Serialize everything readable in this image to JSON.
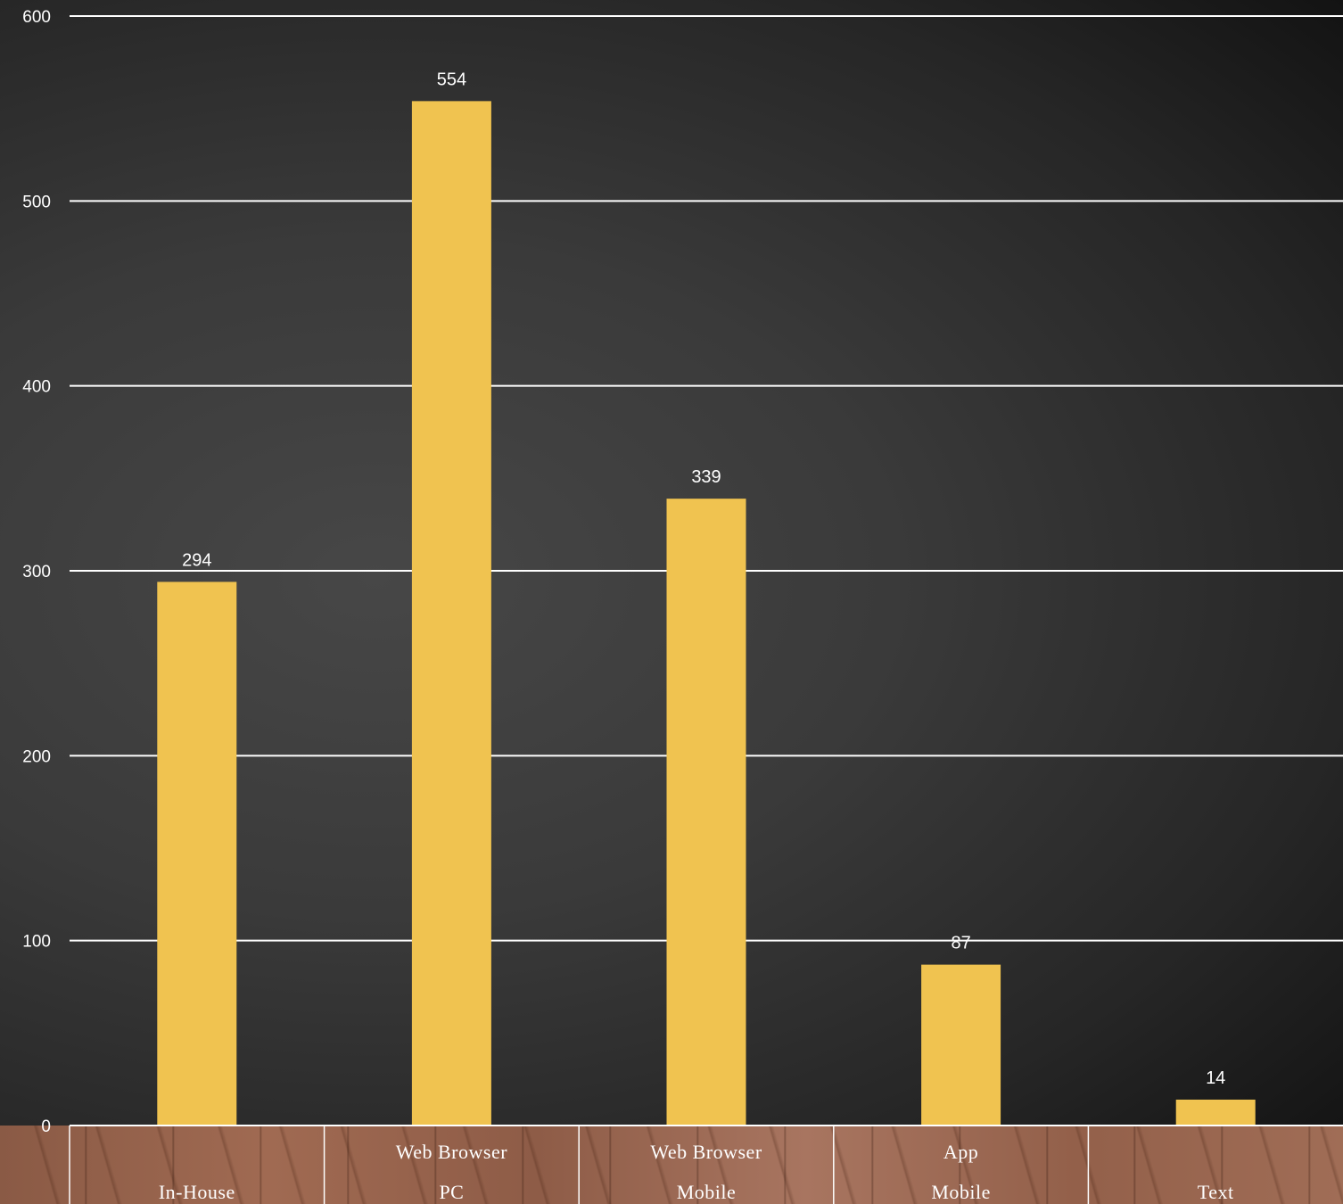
{
  "chart_data": {
    "type": "bar",
    "categories": [
      [
        "In-House"
      ],
      [
        "Web Browser",
        "PC"
      ],
      [
        "Web Browser",
        "Mobile"
      ],
      [
        "App",
        "Mobile"
      ],
      [
        "Text"
      ]
    ],
    "values": [
      294,
      554,
      339,
      87,
      14
    ],
    "data_labels": [
      "294",
      "554",
      "339",
      "87",
      "14"
    ],
    "yticks": [
      0,
      100,
      200,
      300,
      400,
      500,
      600
    ],
    "ytick_labels": [
      "0",
      "100",
      "200",
      "300",
      "400",
      "500",
      "600"
    ],
    "ylim": [
      0,
      600
    ],
    "grid": true,
    "legend": "none",
    "bar_color": "#F0C350",
    "grid_color": "#FFFFFF",
    "text_color": "#FFFFFF"
  }
}
